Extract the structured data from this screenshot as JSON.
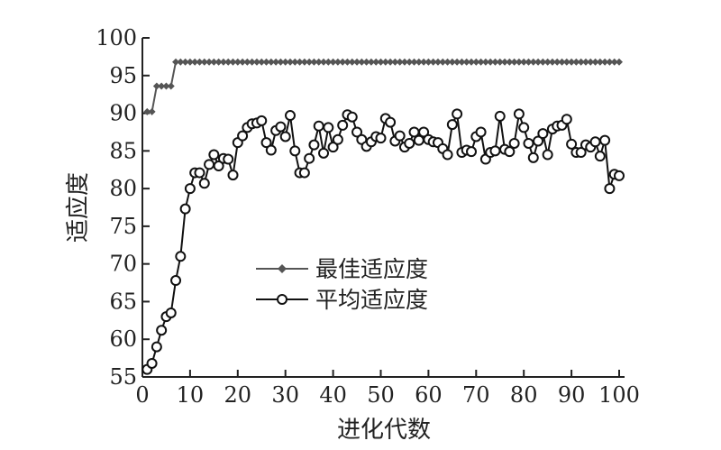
{
  "chart_data": {
    "type": "line",
    "xlabel": "进化代数",
    "ylabel": "适应度",
    "xlim": [
      0,
      100
    ],
    "ylim": [
      55,
      100
    ],
    "xticks": [
      0,
      10,
      20,
      30,
      40,
      50,
      60,
      70,
      80,
      90,
      100
    ],
    "yticks": [
      55,
      60,
      65,
      70,
      75,
      80,
      85,
      90,
      95,
      100
    ],
    "grid": false,
    "legend_position": "center-left",
    "x": [
      1,
      2,
      3,
      4,
      5,
      6,
      7,
      8,
      9,
      10,
      11,
      12,
      13,
      14,
      15,
      16,
      17,
      18,
      19,
      20,
      21,
      22,
      23,
      24,
      25,
      26,
      27,
      28,
      29,
      30,
      31,
      32,
      33,
      34,
      35,
      36,
      37,
      38,
      39,
      40,
      41,
      42,
      43,
      44,
      45,
      46,
      47,
      48,
      49,
      50,
      51,
      52,
      53,
      54,
      55,
      56,
      57,
      58,
      59,
      60,
      61,
      62,
      63,
      64,
      65,
      66,
      67,
      68,
      69,
      70,
      71,
      72,
      73,
      74,
      75,
      76,
      77,
      78,
      79,
      80,
      81,
      82,
      83,
      84,
      85,
      86,
      87,
      88,
      89,
      90,
      91,
      92,
      93,
      94,
      95,
      96,
      97,
      98,
      99,
      100
    ],
    "series": [
      {
        "name": "最佳适应度",
        "color": "#555555",
        "marker": "diamond",
        "values": [
          90.2,
          90.2,
          93.6,
          93.6,
          93.6,
          93.6,
          96.8,
          96.8,
          96.8,
          96.8,
          96.8,
          96.8,
          96.8,
          96.8,
          96.8,
          96.8,
          96.8,
          96.8,
          96.8,
          96.8,
          96.8,
          96.8,
          96.8,
          96.8,
          96.8,
          96.8,
          96.8,
          96.8,
          96.8,
          96.8,
          96.8,
          96.8,
          96.8,
          96.8,
          96.8,
          96.8,
          96.8,
          96.8,
          96.8,
          96.8,
          96.8,
          96.8,
          96.8,
          96.8,
          96.8,
          96.8,
          96.8,
          96.8,
          96.8,
          96.8,
          96.8,
          96.8,
          96.8,
          96.8,
          96.8,
          96.8,
          96.8,
          96.8,
          96.8,
          96.8,
          96.8,
          96.8,
          96.8,
          96.8,
          96.8,
          96.8,
          96.8,
          96.8,
          96.8,
          96.8,
          96.8,
          96.8,
          96.8,
          96.8,
          96.8,
          96.8,
          96.8,
          96.8,
          96.8,
          96.8,
          96.8,
          96.8,
          96.8,
          96.8,
          96.8,
          96.8,
          96.8,
          96.8,
          96.8,
          96.8,
          96.8,
          96.8,
          96.8,
          96.8,
          96.8,
          96.8,
          96.8,
          96.8,
          96.8,
          96.8
        ]
      },
      {
        "name": "平均适应度",
        "color": "#111111",
        "marker": "circle",
        "values": [
          56.0,
          56.8,
          59.0,
          61.2,
          63.0,
          63.5,
          67.8,
          71.0,
          77.3,
          80.0,
          82.1,
          82.1,
          80.7,
          83.2,
          84.5,
          83.0,
          84.0,
          83.9,
          81.8,
          86.1,
          87.0,
          88.1,
          88.6,
          88.7,
          89.0,
          86.1,
          85.1,
          87.7,
          88.2,
          86.9,
          89.7,
          85.0,
          82.1,
          82.1,
          84.0,
          85.8,
          88.3,
          84.7,
          88.1,
          85.5,
          86.5,
          88.4,
          89.8,
          89.5,
          87.5,
          86.5,
          85.6,
          86.2,
          86.9,
          86.7,
          89.3,
          88.8,
          86.3,
          87.0,
          85.5,
          86.0,
          87.5,
          86.4,
          87.5,
          86.5,
          86.2,
          86.1,
          85.3,
          84.5,
          88.5,
          89.9,
          84.8,
          85.1,
          84.9,
          86.9,
          87.5,
          83.9,
          84.8,
          85.0,
          89.6,
          85.2,
          84.9,
          86.0,
          89.9,
          88.1,
          86.0,
          84.1,
          86.3,
          87.3,
          84.5,
          87.9,
          88.3,
          88.4,
          89.2,
          85.9,
          84.8,
          84.8,
          85.8,
          85.5,
          86.2,
          84.3,
          86.4,
          80.0,
          81.9,
          81.7
        ]
      }
    ]
  }
}
